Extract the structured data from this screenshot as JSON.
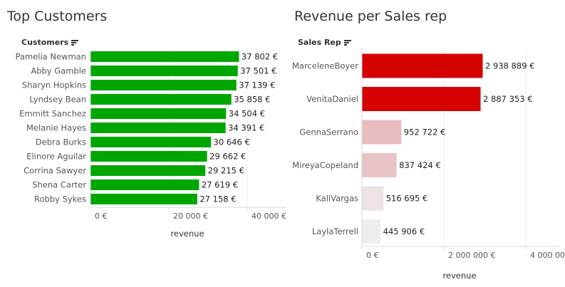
{
  "left_panel": {
    "title": "Top Customers",
    "field_header": "Customers",
    "sort_icon": "sort-descending-icon"
  },
  "right_panel": {
    "title": "Revenue per Sales rep",
    "field_header": "Sales Rep",
    "sort_icon": "sort-descending-icon"
  },
  "chart_data": [
    {
      "type": "bar",
      "orientation": "horizontal",
      "title": "Top Customers",
      "categories": [
        "Pamelia Newman",
        "Abby Gamble",
        "Sharyn Hopkins",
        "Lyndsey Bean",
        "Emmitt Sanchez",
        "Melanie Hayes",
        "Debra Burks",
        "Elinore Aguilar",
        "Corrina Sawyer",
        "Shena Carter",
        "Robby Sykes"
      ],
      "values": [
        37802,
        37501,
        37139,
        35858,
        34504,
        34391,
        30646,
        29662,
        29215,
        27619,
        27158
      ],
      "value_labels": [
        "37 802 €",
        "37 501 €",
        "37 139 €",
        "35 858 €",
        "34 504 €",
        "34 391 €",
        "30 646 €",
        "29 662 €",
        "29 215 €",
        "27 619 €",
        "27 158 €"
      ],
      "bar_color": "#00a600",
      "xlabel": "revenue",
      "xlim": [
        0,
        50000
      ],
      "x_ticks": [
        0,
        20000,
        40000
      ],
      "x_tick_labels": [
        "0 €",
        "20 000 €",
        "40 000 €"
      ],
      "grid": true
    },
    {
      "type": "bar",
      "orientation": "horizontal",
      "title": "Revenue per Sales rep",
      "categories": [
        "MarceleneBoyer",
        "VenitaDaniel",
        "GennaSerrano",
        "MireyaCopeland",
        "KaliVargas",
        "LaylaTerrell"
      ],
      "values": [
        2938889,
        2887353,
        952722,
        837424,
        516695,
        445906
      ],
      "value_labels": [
        "2 938 889 €",
        "2 887 353 €",
        "952 722 €",
        "837 424 €",
        "516 695 €",
        "445 906 €"
      ],
      "bar_colors": [
        "#d50000",
        "#d50000",
        "#e8bcbf",
        "#e8c3c5",
        "#ede3e3",
        "#eeeeee"
      ],
      "xlabel": "revenue",
      "xlim": [
        0,
        4800000
      ],
      "x_ticks": [
        0,
        2000000,
        4000000
      ],
      "x_tick_labels": [
        "0 €",
        "2 000 000 €",
        "4 000 000 €"
      ],
      "grid": true
    }
  ]
}
